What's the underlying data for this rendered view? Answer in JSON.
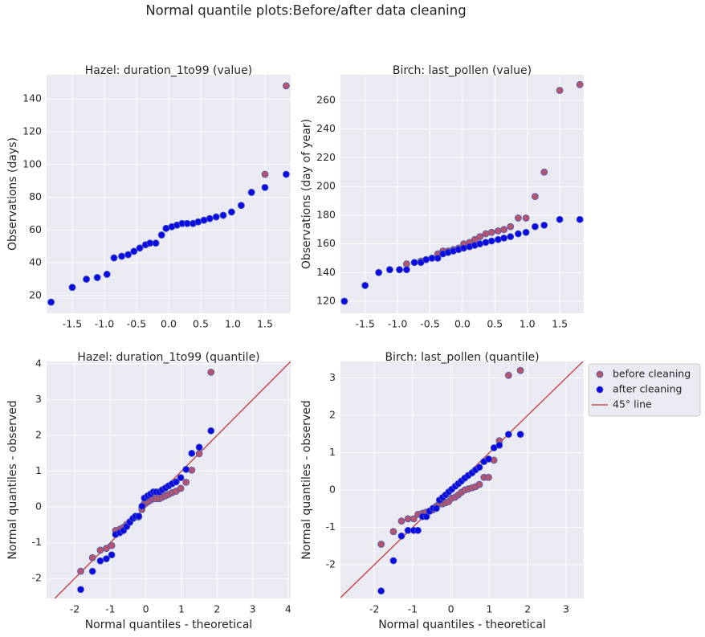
{
  "title": "Normal quantile plots:Before/after data cleaning",
  "chart_data": [
    {
      "type": "scatter",
      "title": "Hazel: duration_1to99 (value)",
      "ylabel": "Observations (days)",
      "x": [
        -1.83,
        -1.5,
        -1.28,
        -1.11,
        -0.96,
        -0.85,
        -0.73,
        -0.63,
        -0.54,
        -0.45,
        -0.36,
        -0.29,
        -0.2,
        -0.11,
        -0.04,
        0.05,
        0.13,
        0.21,
        0.29,
        0.38,
        0.46,
        0.55,
        0.64,
        0.74,
        0.85,
        0.98,
        1.13,
        1.29,
        1.5,
        1.83
      ],
      "series": [
        {
          "color": "#b5546e",
          "values": [
            16,
            25,
            30,
            31,
            33,
            43,
            44,
            45,
            47,
            49,
            51,
            52,
            52,
            57,
            61,
            62,
            63,
            64,
            64,
            64,
            65,
            66,
            67,
            68,
            69,
            71,
            75,
            83,
            94,
            148
          ]
        },
        {
          "color": "#0a0ae6",
          "values": [
            16,
            25,
            30,
            31,
            33,
            43,
            44,
            45,
            47,
            49,
            51,
            52,
            52,
            57,
            61,
            62,
            63,
            64,
            64,
            64,
            65,
            66,
            67,
            68,
            69,
            71,
            75,
            83,
            86,
            94
          ]
        }
      ],
      "xlim": [
        -1.9,
        1.9
      ],
      "ylim": [
        9.2,
        154.8
      ],
      "xticks": [
        -1.5,
        {
          "value": -1,
          "label": "-1.0"
        },
        -0.5,
        {
          "value": 0,
          "label": "0.0"
        },
        0.5,
        {
          "value": 1,
          "label": "1.0"
        },
        1.5
      ],
      "yticks": [
        20,
        40,
        60,
        80,
        100,
        120,
        140
      ],
      "grid": true
    },
    {
      "type": "scatter",
      "title": "Birch: last_pollen (value)",
      "ylabel": "Observations (day of year)",
      "x": [
        -1.82,
        -1.5,
        -1.29,
        -1.12,
        -0.97,
        -0.86,
        -0.74,
        -0.64,
        -0.56,
        -0.47,
        -0.38,
        -0.3,
        -0.22,
        -0.14,
        -0.06,
        0.02,
        0.11,
        0.19,
        0.27,
        0.36,
        0.45,
        0.55,
        0.64,
        0.74,
        0.86,
        0.98,
        1.12,
        1.26,
        1.5,
        1.81
      ],
      "series": [
        {
          "color": "#b5546e",
          "values": [
            120,
            131,
            140,
            142,
            142,
            146,
            147,
            148,
            149,
            150,
            153,
            155,
            155,
            156,
            157,
            160,
            161,
            163,
            165,
            167,
            168,
            169,
            170,
            172,
            178,
            178,
            193,
            210,
            267,
            271
          ]
        },
        {
          "color": "#0a0ae6",
          "values": [
            120,
            131,
            140,
            142,
            142,
            142,
            147,
            147,
            149,
            150,
            150,
            153,
            154,
            155,
            156,
            157,
            158,
            159,
            160,
            161,
            162,
            163,
            164,
            165,
            167,
            168,
            172,
            173,
            177,
            177
          ]
        }
      ],
      "xlim": [
        -1.88,
        1.87
      ],
      "ylim": [
        111.6,
        277.9
      ],
      "xticks": [
        -1.5,
        {
          "value": -1,
          "label": "-1.0"
        },
        -0.5,
        {
          "value": 0,
          "label": "0.0"
        },
        0.5,
        {
          "value": 1,
          "label": "1.0"
        },
        1.5
      ],
      "yticks": [
        120,
        140,
        160,
        180,
        200,
        220,
        240,
        260
      ],
      "grid": true
    },
    {
      "type": "scatter",
      "title": "Hazel: duration_1to99 (quantile)",
      "xlabel": "Normal quantiles - theoretical",
      "ylabel": "Normal quantiles - observed",
      "x": [
        -1.83,
        -1.5,
        -1.28,
        -1.11,
        -0.96,
        -0.85,
        -0.73,
        -0.63,
        -0.54,
        -0.45,
        -0.36,
        -0.29,
        -0.2,
        -0.11,
        -0.04,
        0.05,
        0.13,
        0.21,
        0.29,
        0.38,
        0.46,
        0.55,
        0.64,
        0.74,
        0.85,
        0.98,
        1.13,
        1.29,
        1.5,
        1.83
      ],
      "series": [
        {
          "color": "#b5546e",
          "values": [
            -1.8,
            -1.42,
            -1.21,
            -1.16,
            -1.08,
            -0.66,
            -0.62,
            -0.57,
            -0.49,
            -0.41,
            -0.32,
            -0.28,
            -0.28,
            -0.07,
            0.1,
            0.14,
            0.19,
            0.23,
            0.23,
            0.23,
            0.27,
            0.31,
            0.35,
            0.4,
            0.44,
            0.52,
            0.69,
            1.03,
            1.49,
            3.77
          ]
        },
        {
          "color": "#0a0ae6",
          "values": [
            -2.31,
            -1.8,
            -1.51,
            -1.45,
            -1.34,
            -0.77,
            -0.72,
            -0.66,
            -0.55,
            -0.43,
            -0.32,
            -0.26,
            -0.26,
            0.02,
            0.25,
            0.31,
            0.36,
            0.42,
            0.42,
            0.42,
            0.48,
            0.53,
            0.59,
            0.65,
            0.7,
            0.82,
            1.05,
            1.5,
            1.67,
            2.13
          ]
        }
      ],
      "diagonal": {
        "color": "#c44e52"
      },
      "xlim": [
        -2.79,
        4.07
      ],
      "ylim": [
        -2.56,
        4.07
      ],
      "xticks": [
        -2,
        -1,
        0,
        1,
        2,
        3,
        4
      ],
      "yticks": [
        -2,
        -1,
        0,
        1,
        2,
        3,
        4
      ],
      "grid": true
    },
    {
      "type": "scatter",
      "title": "Birch: last_pollen (quantile)",
      "xlabel": "Normal quantiles - theoretical",
      "ylabel": "Normal quantiles - observed",
      "x": [
        -1.82,
        -1.5,
        -1.29,
        -1.12,
        -0.97,
        -0.86,
        -0.74,
        -0.64,
        -0.56,
        -0.47,
        -0.38,
        -0.3,
        -0.22,
        -0.14,
        -0.06,
        0.02,
        0.11,
        0.19,
        0.27,
        0.36,
        0.45,
        0.55,
        0.64,
        0.74,
        0.86,
        0.98,
        1.12,
        1.26,
        1.5,
        1.81
      ],
      "series": [
        {
          "name": "before cleaning",
          "color": "#b5546e",
          "values": [
            -1.45,
            -1.11,
            -0.83,
            -0.77,
            -0.77,
            -0.65,
            -0.62,
            -0.59,
            -0.56,
            -0.53,
            -0.43,
            -0.37,
            -0.37,
            -0.34,
            -0.31,
            -0.22,
            -0.19,
            -0.13,
            -0.06,
            0,
            0.03,
            0.06,
            0.09,
            0.15,
            0.34,
            0.34,
            0.8,
            1.32,
            3.07,
            3.2
          ]
        },
        {
          "name": "after cleaning",
          "color": "#0a0ae6",
          "values": [
            -2.7,
            -1.89,
            -1.23,
            -1.08,
            -1.08,
            -1.08,
            -0.71,
            -0.71,
            -0.57,
            -0.49,
            -0.49,
            -0.27,
            -0.2,
            -0.13,
            -0.05,
            0.02,
            0.1,
            0.17,
            0.24,
            0.32,
            0.39,
            0.46,
            0.54,
            0.61,
            0.76,
            0.83,
            1.13,
            1.2,
            1.49,
            1.49
          ]
        }
      ],
      "diagonal": {
        "name": "45° line",
        "color": "#c44e52"
      },
      "legend": "outside upper right",
      "xlim": [
        -2.88,
        3.46
      ],
      "ylim": [
        -2.9,
        3.44
      ],
      "xticks": [
        -2,
        -1,
        0,
        1,
        2,
        3
      ],
      "yticks": [
        -2,
        -1,
        0,
        1,
        2,
        3
      ],
      "grid": true
    }
  ]
}
